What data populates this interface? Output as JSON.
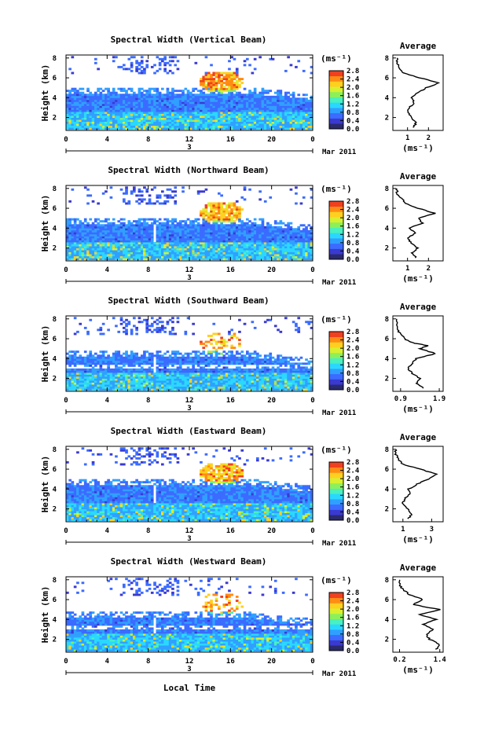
{
  "chart_data": {
    "type": "heatmap",
    "x_label": "Local Time",
    "date_label": "Mar 2011",
    "day_label": "3",
    "x_ticks": [
      "0",
      "4",
      "8",
      "12",
      "16",
      "20",
      "0"
    ],
    "y_label": "Height (km)",
    "y_ticks": [
      "2",
      "4",
      "6",
      "8"
    ],
    "colorbar": {
      "unit": "(ms⁻¹)",
      "ticks": [
        "0.0",
        "0.4",
        "0.8",
        "1.2",
        "1.6",
        "2.0",
        "2.4",
        "2.8"
      ],
      "colors": [
        "#2a2a6e",
        "#3a3ad0",
        "#3b6bff",
        "#30a0ff",
        "#2ad8ff",
        "#49f0c0",
        "#8cf05a",
        "#d8f030",
        "#ffd020",
        "#ff8c14",
        "#f04020"
      ]
    },
    "panels": [
      {
        "title": "Spectral Width (Vertical Beam)",
        "avg_title": "Average",
        "avg_x_ticks": [
          "1",
          "2"
        ],
        "avg_xlim": [
          0.3,
          2.7
        ],
        "avg_unit": "(ms⁻¹)",
        "avg_profile": [
          [
            1.3,
            1.0
          ],
          [
            1.4,
            1.5
          ],
          [
            1.2,
            2.0
          ],
          [
            1.0,
            2.5
          ],
          [
            1.1,
            3.0
          ],
          [
            1.3,
            3.5
          ],
          [
            1.2,
            4.0
          ],
          [
            1.5,
            4.5
          ],
          [
            1.9,
            5.0
          ],
          [
            2.5,
            5.5
          ],
          [
            1.6,
            6.0
          ],
          [
            0.8,
            6.5
          ],
          [
            0.6,
            7.0
          ],
          [
            0.5,
            7.5
          ],
          [
            0.5,
            8.0
          ]
        ]
      },
      {
        "title": "Spectral Width (Northward Beam)",
        "avg_title": "Average",
        "avg_x_ticks": [
          "1",
          "2"
        ],
        "avg_xlim": [
          0.3,
          2.7
        ],
        "avg_unit": "(ms⁻¹)",
        "avg_profile": [
          [
            1.4,
            1.0
          ],
          [
            1.2,
            1.5
          ],
          [
            1.5,
            2.0
          ],
          [
            1.2,
            2.5
          ],
          [
            1.0,
            3.0
          ],
          [
            1.4,
            3.5
          ],
          [
            1.1,
            4.0
          ],
          [
            1.7,
            4.5
          ],
          [
            1.5,
            5.0
          ],
          [
            2.3,
            5.5
          ],
          [
            1.5,
            6.0
          ],
          [
            0.9,
            6.5
          ],
          [
            0.7,
            7.0
          ],
          [
            0.5,
            7.5
          ],
          [
            0.5,
            8.0
          ]
        ]
      },
      {
        "title": "Spectral Width (Southward Beam)",
        "avg_title": "Average",
        "avg_x_ticks": [
          "0.9",
          "1.9"
        ],
        "avg_xlim": [
          0.7,
          2.0
        ],
        "avg_unit": "(ms⁻¹)",
        "avg_profile": [
          [
            1.5,
            1.0
          ],
          [
            1.3,
            1.5
          ],
          [
            1.4,
            2.0
          ],
          [
            1.2,
            2.5
          ],
          [
            1.1,
            3.0
          ],
          [
            1.2,
            3.5
          ],
          [
            1.3,
            4.0
          ],
          [
            1.8,
            4.5
          ],
          [
            1.4,
            5.0
          ],
          [
            1.6,
            5.3
          ],
          [
            1.2,
            5.6
          ],
          [
            1.0,
            6.0
          ],
          [
            0.9,
            6.5
          ],
          [
            0.8,
            7.0
          ],
          [
            0.8,
            8.0
          ]
        ]
      },
      {
        "title": "Spectral Width (Eastward Beam)",
        "avg_title": "Average",
        "avg_x_ticks": [
          "1",
          "3"
        ],
        "avg_xlim": [
          0.3,
          3.8
        ],
        "avg_unit": "(ms⁻¹)",
        "avg_profile": [
          [
            1.4,
            1.0
          ],
          [
            1.6,
            1.5
          ],
          [
            1.3,
            2.0
          ],
          [
            1.0,
            2.5
          ],
          [
            1.1,
            3.0
          ],
          [
            1.5,
            3.5
          ],
          [
            1.4,
            4.0
          ],
          [
            2.0,
            4.5
          ],
          [
            2.8,
            5.0
          ],
          [
            3.3,
            5.5
          ],
          [
            2.2,
            6.0
          ],
          [
            1.0,
            6.5
          ],
          [
            0.7,
            7.0
          ],
          [
            0.5,
            7.5
          ],
          [
            0.5,
            8.0
          ]
        ]
      },
      {
        "title": "Spectral Width (Westward Beam)",
        "avg_title": "Average",
        "avg_x_ticks": [
          "0.2",
          "1.4"
        ],
        "avg_xlim": [
          0.0,
          1.5
        ],
        "avg_unit": "(ms⁻¹)",
        "avg_profile": [
          [
            1.3,
            1.0
          ],
          [
            1.4,
            1.5
          ],
          [
            1.1,
            2.0
          ],
          [
            1.0,
            2.5
          ],
          [
            1.2,
            3.0
          ],
          [
            0.9,
            3.5
          ],
          [
            1.3,
            4.0
          ],
          [
            0.8,
            4.5
          ],
          [
            1.4,
            5.0
          ],
          [
            0.6,
            5.5
          ],
          [
            0.9,
            6.0
          ],
          [
            0.5,
            6.5
          ],
          [
            0.3,
            7.0
          ],
          [
            0.2,
            7.5
          ],
          [
            0.2,
            8.0
          ]
        ]
      }
    ]
  }
}
